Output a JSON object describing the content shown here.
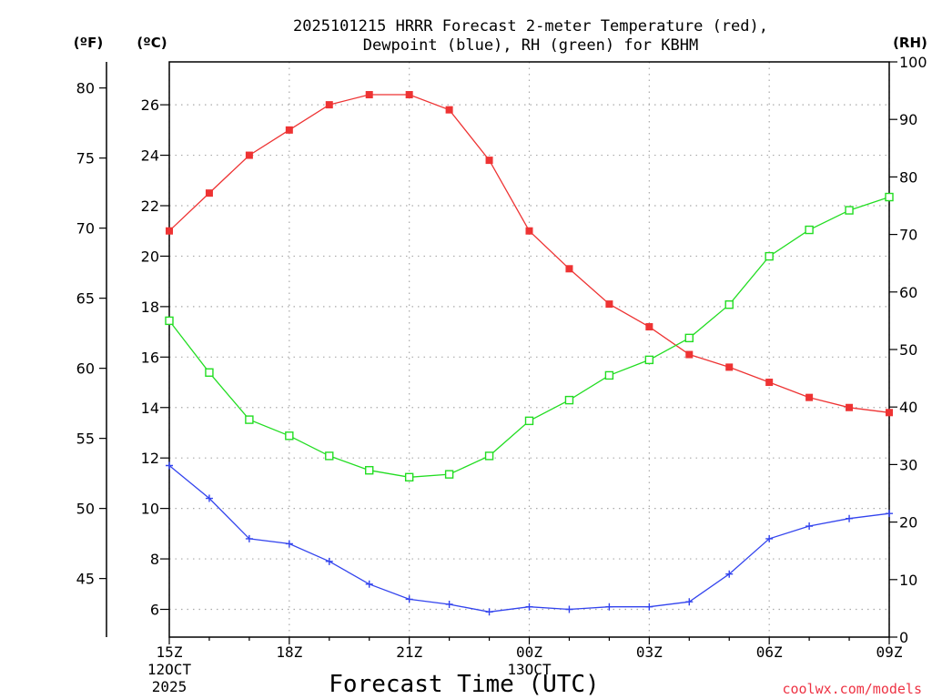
{
  "chart_data": {
    "type": "line",
    "title_line1": "2025101215 HRRR Forecast 2-meter Temperature (red),",
    "title_line2": "Dewpoint (blue), RH (green) for KBHM",
    "xlabel": "Forecast Time (UTC)",
    "credit": "coolwx.com/models",
    "units": {
      "fahrenheit": "(ºF)",
      "celsius": "(ºC)",
      "rh": "(RH)"
    },
    "x_ticks": [
      {
        "hour": 0,
        "label": "15Z",
        "sub1": "12OCT",
        "sub2": "2025"
      },
      {
        "hour": 3,
        "label": "18Z"
      },
      {
        "hour": 6,
        "label": "21Z"
      },
      {
        "hour": 9,
        "label": "00Z",
        "sub1": "13OCT"
      },
      {
        "hour": 12,
        "label": "03Z"
      },
      {
        "hour": 15,
        "label": "06Z"
      },
      {
        "hour": 18,
        "label": "09Z"
      }
    ],
    "xlim": [
      0,
      18
    ],
    "c_axis": {
      "range": [
        4.9,
        27.7
      ],
      "ticks": [
        6,
        8,
        10,
        12,
        14,
        16,
        18,
        20,
        22,
        24,
        26
      ]
    },
    "f_axis": {
      "ticks": [
        45,
        50,
        55,
        60,
        65,
        70,
        75,
        80
      ]
    },
    "rh_axis": {
      "range": [
        0,
        100
      ],
      "ticks": [
        0,
        10,
        20,
        30,
        40,
        50,
        60,
        70,
        80,
        90,
        100
      ]
    },
    "series": [
      {
        "name": "Temperature",
        "color": "#ee3333",
        "marker": "filled-square",
        "axis": "c",
        "values": [
          21.0,
          22.5,
          24.0,
          25.0,
          26.0,
          26.4,
          26.4,
          25.8,
          23.8,
          21.0,
          19.5,
          18.1,
          17.2,
          16.1,
          15.6,
          15.0,
          14.4,
          14.0,
          13.8
        ]
      },
      {
        "name": "Dewpoint",
        "color": "#3344ee",
        "marker": "plus",
        "axis": "c",
        "values": [
          11.7,
          10.4,
          8.8,
          8.6,
          7.9,
          7.0,
          6.4,
          6.2,
          5.9,
          6.1,
          6.0,
          6.1,
          6.1,
          6.3,
          7.4,
          8.8,
          9.3,
          9.6,
          9.8
        ]
      },
      {
        "name": "RH",
        "color": "#22dd22",
        "marker": "open-square",
        "axis": "rh",
        "values": [
          55,
          46,
          37.8,
          35,
          31.5,
          29,
          27.8,
          28.3,
          31.5,
          37.6,
          41.2,
          45.5,
          48.2,
          52,
          57.8,
          66.2,
          70.8,
          74.2,
          76.5
        ]
      }
    ]
  }
}
